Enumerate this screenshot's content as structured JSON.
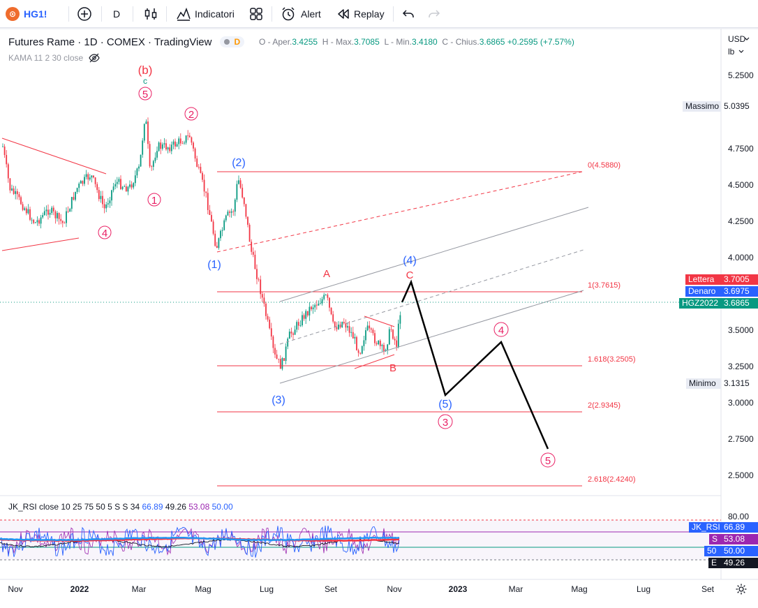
{
  "toolbar": {
    "symbol": "HG1!",
    "interval": "D",
    "indicators_label": "Indicatori",
    "alert_label": "Alert",
    "replay_label": "Replay"
  },
  "legend": {
    "title": "Futures Rame · 1D · COMEX · TradingView",
    "badge_letter": "D",
    "ohlc": {
      "open_label": "O - Aper.",
      "open": "3.4255",
      "high_label": "H - Max.",
      "high": "3.7085",
      "low_label": "L - Min.",
      "low": "3.4180",
      "close_label": "C - Chius.",
      "close": "3.6865",
      "change": "+0.2595 (+7.57%)"
    },
    "kama": "KAMA 11 2 30 close"
  },
  "price_axis": {
    "unit_currency": "USD",
    "unit_weight": "lb",
    "ticks": [
      "5.2500",
      "4.7500",
      "4.5000",
      "4.2500",
      "4.0000",
      "3.5000",
      "3.2500",
      "3.0000",
      "2.7500",
      "2.5000"
    ],
    "badges": {
      "massimo_label": "Massimo",
      "massimo_value": "5.0395",
      "lettera_label": "Lettera",
      "lettera_value": "3.7005",
      "denaro_label": "Denaro",
      "denaro_value": "3.6975",
      "contract_label": "HGZ2022",
      "contract_value": "3.6865",
      "minimo_label": "Minimo",
      "minimo_value": "3.1315"
    }
  },
  "fib_levels": [
    {
      "label": "0(4.5880)"
    },
    {
      "label": "1(3.7615)"
    },
    {
      "label": "1.618(3.2505)"
    },
    {
      "label": "2(2.9345)"
    },
    {
      "label": "2.618(2.4240)"
    }
  ],
  "wave_labels": {
    "b_paren": "(b)",
    "c_small": "c",
    "five_top": "5",
    "two_red": "2",
    "one_red": "1",
    "four_red": "4",
    "two_blue": "(2)",
    "one_blue": "(1)",
    "three_blue": "(3)",
    "four_blue": "(4)",
    "A": "A",
    "B": "B",
    "C": "C",
    "five_blue": "(5)",
    "three_red": "3",
    "four_future": "4",
    "five_future": "5"
  },
  "rsi": {
    "legend_name": "JK_RSI close 10 25 75 50 5 S S 34",
    "v1": "66.89",
    "v2": "49.26",
    "v3": "53.08",
    "v4": "50.00",
    "axis_tick": "80.00",
    "badges": {
      "jk_label": "JK_RSI",
      "jk_value": "66.89",
      "s_label": "S",
      "s_value": "53.08",
      "fifty_label": "50",
      "fifty_value": "50.00",
      "e_label": "E",
      "e_value": "49.26"
    }
  },
  "time_axis": [
    "Nov",
    "2022",
    "Mar",
    "Mag",
    "Lug",
    "Set",
    "Nov",
    "2023",
    "Mar",
    "Mag",
    "Lug",
    "Set"
  ],
  "colors": {
    "up": "#089981",
    "down": "#f23645",
    "fib": "#f23645",
    "wave_blue": "#2962ff",
    "lettera": "#f23645",
    "denaro": "#2962ff",
    "contract": "#089981",
    "rsi_pink": "#e91e63"
  }
}
